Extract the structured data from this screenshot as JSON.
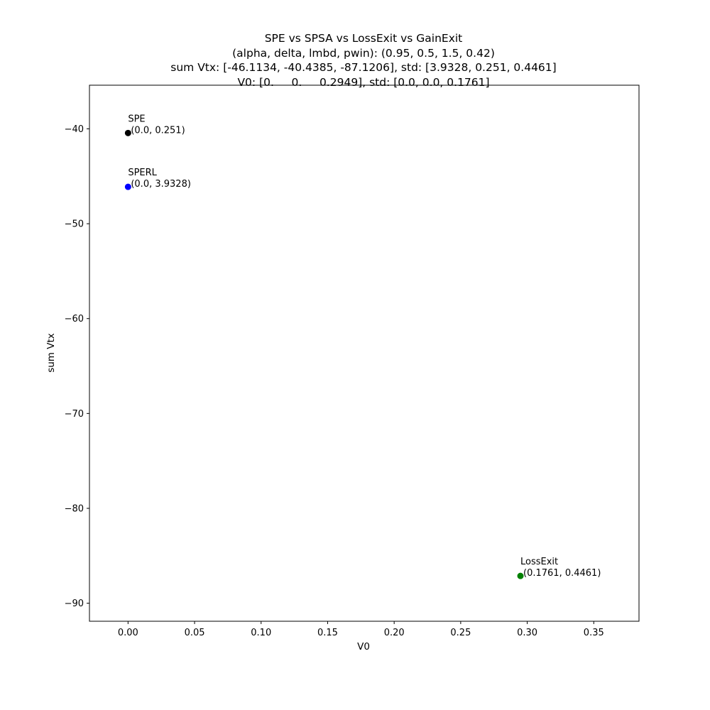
{
  "chart_data": {
    "type": "scatter",
    "title_lines": [
      "SPE vs SPSA vs LossExit vs GainExit",
      "(alpha, delta, lmbd, pwin): (0.95, 0.5, 1.5, 0.42)",
      "sum Vtx: [-46.1134, -40.4385, -87.1206], std: [3.9328, 0.251, 0.4461]",
      "V0: [0.     0.     0.2949], std: [0.0, 0.0, 0.1761]"
    ],
    "xlabel": "V0",
    "ylabel": "sum Vtx",
    "xlim": [
      -0.029,
      0.384
    ],
    "ylim": [
      -91.9,
      -35.4
    ],
    "x_ticks": [
      0.0,
      0.05,
      0.1,
      0.15,
      0.2,
      0.25,
      0.3,
      0.35
    ],
    "x_tick_labels": [
      "0.00",
      "0.05",
      "0.10",
      "0.15",
      "0.20",
      "0.25",
      "0.30",
      "0.35"
    ],
    "y_ticks": [
      -40,
      -50,
      -60,
      -70,
      -80,
      -90
    ],
    "y_tick_labels": [
      "−40",
      "−50",
      "−60",
      "−70",
      "−80",
      "−90"
    ],
    "points": [
      {
        "name": "SPE",
        "x": 0.0,
        "y": -40.4385,
        "color": "#000000",
        "std_label": "(0.0, 0.251)"
      },
      {
        "name": "SPERL",
        "x": 0.0,
        "y": -46.1134,
        "color": "#0000ff",
        "std_label": "(0.0, 3.9328)"
      },
      {
        "name": "LossExit",
        "x": 0.2949,
        "y": -87.1206,
        "color": "#008000",
        "std_label": "(0.1761, 0.4461)"
      }
    ]
  }
}
